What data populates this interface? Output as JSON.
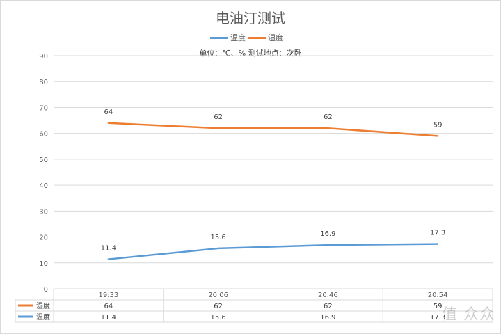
{
  "chart_data": {
    "type": "line",
    "title": "电油汀测试",
    "subtitle": "单位：℃、%    测试地点：次卧",
    "categories": [
      "19:33",
      "20:06",
      "20:46",
      "20:54"
    ],
    "series": [
      {
        "name": "温度",
        "values": [
          11.4,
          15.6,
          16.9,
          17.3
        ],
        "color": "#5b9bd5"
      },
      {
        "name": "湿度",
        "values": [
          64,
          62,
          62,
          59
        ],
        "color": "#ed7d31"
      }
    ],
    "ylim": [
      0,
      90
    ],
    "yticks": [
      0,
      10,
      20,
      30,
      40,
      50,
      60,
      70,
      80,
      90
    ],
    "grid": true,
    "legend": "top-center",
    "data_table": true
  },
  "watermark": "值 众众"
}
